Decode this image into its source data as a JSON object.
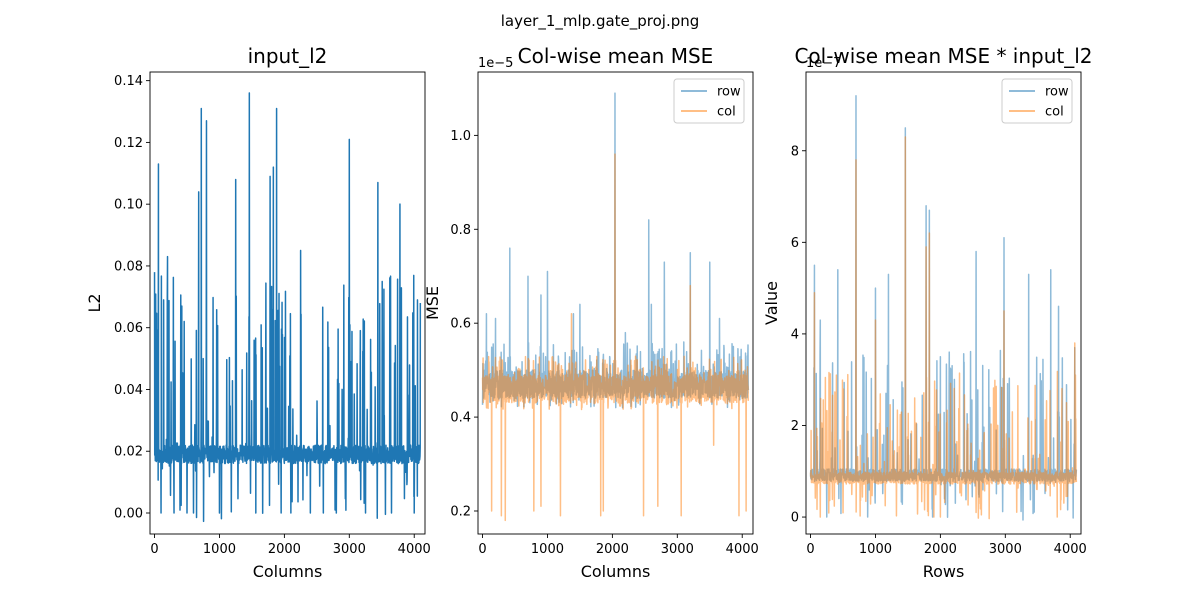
{
  "figure": {
    "suptitle": "layer_1_mlp.gate_proj.png"
  },
  "chart_data": [
    {
      "type": "line",
      "title": "input_l2",
      "xlabel": "Columns",
      "ylabel": "L2",
      "xlim": [
        -70,
        4166
      ],
      "ylim": [
        -0.0068,
        0.1428
      ],
      "xticks": [
        0,
        1000,
        2000,
        3000,
        4000
      ],
      "xtick_labels": [
        "0",
        "1000",
        "2000",
        "3000",
        "4000"
      ],
      "yticks": [
        0.0,
        0.02,
        0.04,
        0.06,
        0.08,
        0.1,
        0.12,
        0.14
      ],
      "ytick_labels": [
        "0.00",
        "0.02",
        "0.04",
        "0.06",
        "0.08",
        "0.10",
        "0.12",
        "0.14"
      ],
      "offset_label": "",
      "legend": null,
      "series": [
        {
          "color": "#1f77b4",
          "opacity": 1,
          "baseline": [
            0.016,
            0.022
          ],
          "noise": 0.055,
          "x": [
            0,
            60,
            100,
            140,
            200,
            300,
            420,
            500,
            600,
            680,
            720,
            800,
            1000,
            1250,
            1460,
            1560,
            1780,
            1830,
            1880,
            1950,
            2100,
            2250,
            2400,
            2600,
            2800,
            3000,
            3250,
            3440,
            3650,
            3780,
            4000,
            4050,
            4094
          ],
          "y": [
            0.078,
            0.113,
            0.0,
            0.069,
            0.083,
            0.0,
            0.067,
            0.0,
            0.0,
            0.104,
            0.131,
            0.127,
            0.0,
            0.108,
            0.136,
            0.0,
            0.109,
            0.112,
            0.131,
            0.0,
            0.0,
            0.085,
            0.0,
            0.0,
            0.0,
            0.121,
            0.0,
            0.107,
            0.0,
            0.1,
            0.0,
            0.069,
            0.068
          ]
        }
      ]
    },
    {
      "type": "line",
      "title": "Col-wise mean MSE",
      "xlabel": "Columns",
      "ylabel": "MSE",
      "xlim": [
        -70,
        4166
      ],
      "ylim": [
        0.151,
        1.135
      ],
      "xticks": [
        0,
        1000,
        2000,
        3000,
        4000
      ],
      "xtick_labels": [
        "0",
        "1000",
        "2000",
        "3000",
        "4000"
      ],
      "yticks": [
        0.2,
        0.4,
        0.6,
        0.8,
        1.0
      ],
      "ytick_labels": [
        "0.2",
        "0.4",
        "0.6",
        "0.8",
        "1.0"
      ],
      "offset_label": "1e−5",
      "legend": "upper right",
      "series": [
        {
          "name": "row",
          "color": "#1f77b4",
          "opacity": 0.5,
          "baseline": [
            0.44,
            0.5
          ],
          "noise": 0.06,
          "x": [
            60,
            200,
            420,
            700,
            900,
            1000,
            1400,
            1500,
            2040,
            2200,
            2560,
            2600,
            2800,
            3100,
            3200,
            3500,
            3650,
            4080
          ],
          "y": [
            0.62,
            0.61,
            0.76,
            0.7,
            0.66,
            0.71,
            0.62,
            0.64,
            1.09,
            0.58,
            0.82,
            0.64,
            0.73,
            0.56,
            0.75,
            0.73,
            0.61,
            0.53
          ]
        },
        {
          "name": "col",
          "color": "#ff7f0e",
          "opacity": 0.5,
          "baseline": [
            0.43,
            0.49
          ],
          "noise": 0.04,
          "x": [
            140,
            290,
            350,
            790,
            900,
            1200,
            1370,
            1820,
            1860,
            2040,
            2480,
            2700,
            3060,
            3200,
            3560,
            3950,
            4060
          ],
          "y": [
            0.2,
            0.19,
            0.18,
            0.2,
            0.21,
            0.19,
            0.62,
            0.19,
            0.2,
            0.96,
            0.19,
            0.21,
            0.19,
            0.68,
            0.34,
            0.19,
            0.2
          ]
        }
      ]
    },
    {
      "type": "line",
      "title": "Col-wise mean MSE * input_l2",
      "xlabel": "Rows",
      "ylabel": "Value",
      "xlim": [
        -70,
        4166
      ],
      "ylim": [
        -0.37,
        9.72
      ],
      "xticks": [
        0,
        1000,
        2000,
        3000,
        4000
      ],
      "xtick_labels": [
        "0",
        "1000",
        "2000",
        "3000",
        "4000"
      ],
      "yticks": [
        0,
        2,
        4,
        6,
        8
      ],
      "ytick_labels": [
        "0",
        "2",
        "4",
        "6",
        "8"
      ],
      "offset_label": "1e−7",
      "legend": "upper right",
      "series": [
        {
          "name": "row",
          "color": "#1f77b4",
          "opacity": 0.5,
          "baseline": [
            0.78,
            1.05
          ],
          "noise": 2.6,
          "x": [
            60,
            150,
            250,
            420,
            700,
            880,
            1000,
            1200,
            1460,
            1780,
            1830,
            1880,
            2000,
            2550,
            2980,
            3360,
            3700,
            3820,
            4070
          ],
          "y": [
            5.5,
            4.3,
            0.0,
            5.4,
            9.2,
            0.0,
            5.0,
            5.3,
            8.5,
            6.8,
            6.7,
            0.0,
            3.5,
            5.8,
            6.1,
            5.3,
            5.4,
            4.6,
            3.7
          ]
        },
        {
          "name": "col",
          "color": "#ff7f0e",
          "opacity": 0.5,
          "baseline": [
            0.72,
            0.98
          ],
          "noise": 2.2,
          "x": [
            60,
            150,
            700,
            1000,
            1460,
            1780,
            1830,
            1900,
            2000,
            2550,
            2980,
            3800,
            4070
          ],
          "y": [
            4.9,
            0.0,
            7.8,
            4.3,
            8.3,
            5.9,
            6.2,
            0.0,
            0.0,
            0.1,
            4.5,
            0.0,
            3.8
          ]
        }
      ]
    }
  ]
}
